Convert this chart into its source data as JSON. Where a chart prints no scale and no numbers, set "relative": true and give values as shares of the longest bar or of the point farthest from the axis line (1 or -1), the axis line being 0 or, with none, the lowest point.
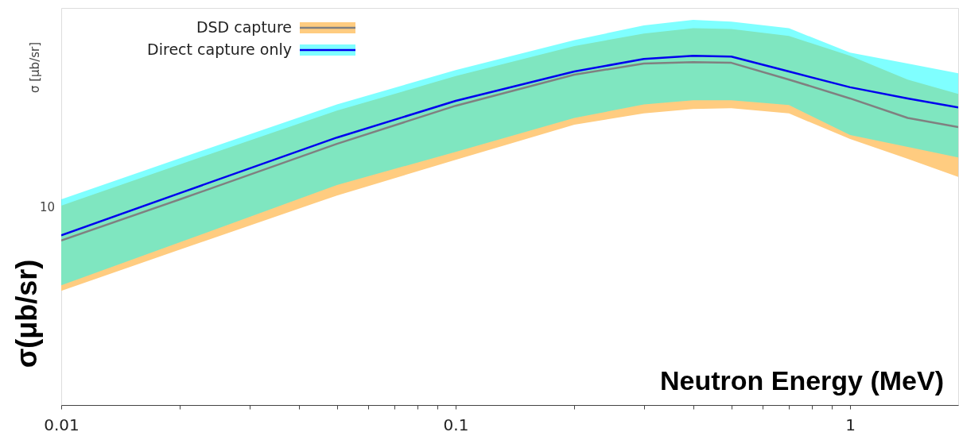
{
  "chart_data": {
    "type": "line",
    "relative": true,
    "xlabel": "Neutron Energy (MeV)",
    "ylabel": "σ [μb/sr]",
    "annotations": [
      "σ(μb/sr)",
      "10"
    ],
    "colors": [
      "#ffcc80",
      "#00ffff"
    ],
    "x": [
      0.01,
      0.02,
      0.05,
      0.1,
      0.2,
      0.3,
      0.4,
      0.5,
      0.7,
      1,
      1.4,
      1.88
    ],
    "series": [
      {
        "name": "DSD capture",
        "color": "#808080",
        "values": [
          0.471,
          0.589,
          0.748,
          0.857,
          0.946,
          0.978,
          0.982,
          0.98,
          0.932,
          0.878,
          0.822,
          0.796
        ],
        "upper": [
          0.571,
          0.689,
          0.843,
          0.942,
          1.028,
          1.064,
          1.079,
          1.077,
          1.057,
          1.0,
          0.932,
          0.891
        ],
        "lower": [
          0.327,
          0.445,
          0.6,
          0.702,
          0.803,
          0.835,
          0.848,
          0.85,
          0.835,
          0.762,
          0.705,
          0.653
        ]
      },
      {
        "name": "Direct capture only",
        "color": "#0000ee",
        "values": [
          0.486,
          0.607,
          0.766,
          0.871,
          0.955,
          0.991,
          1,
          0.998,
          0.955,
          0.91,
          0.878,
          0.852
        ],
        "upper": [
          0.589,
          0.707,
          0.861,
          0.959,
          1.045,
          1.087,
          1.103,
          1.098,
          1.079,
          1.009,
          0.978,
          0.95
        ],
        "lower": [
          0.343,
          0.466,
          0.63,
          0.725,
          0.822,
          0.861,
          0.873,
          0.873,
          0.859,
          0.773,
          0.739,
          0.709
        ]
      }
    ],
    "log": "x",
    "xlim": [
      0.01,
      1.88
    ],
    "xticks": [
      0.01,
      {
        "value": 0.02,
        "label": null
      },
      {
        "value": 0.03,
        "label": null
      },
      {
        "value": 0.04,
        "label": null
      },
      {
        "value": 0.05,
        "label": null
      },
      {
        "value": 0.06,
        "label": null
      },
      {
        "value": 0.07,
        "label": null
      },
      {
        "value": 0.08,
        "label": null
      },
      {
        "value": 0.09,
        "label": null
      },
      0.1,
      {
        "value": 0.2,
        "label": null
      },
      {
        "value": 0.3,
        "label": null
      },
      {
        "value": 0.4,
        "label": null
      },
      {
        "value": 0.5,
        "label": null
      },
      {
        "value": 0.6,
        "label": null
      },
      {
        "value": 0.7,
        "label": null
      },
      {
        "value": 0.8,
        "label": null
      },
      {
        "value": 0.9,
        "label": null
      },
      1
    ],
    "grid": false,
    "legend": "top left",
    "marker": "none",
    "line_style": "solid"
  }
}
